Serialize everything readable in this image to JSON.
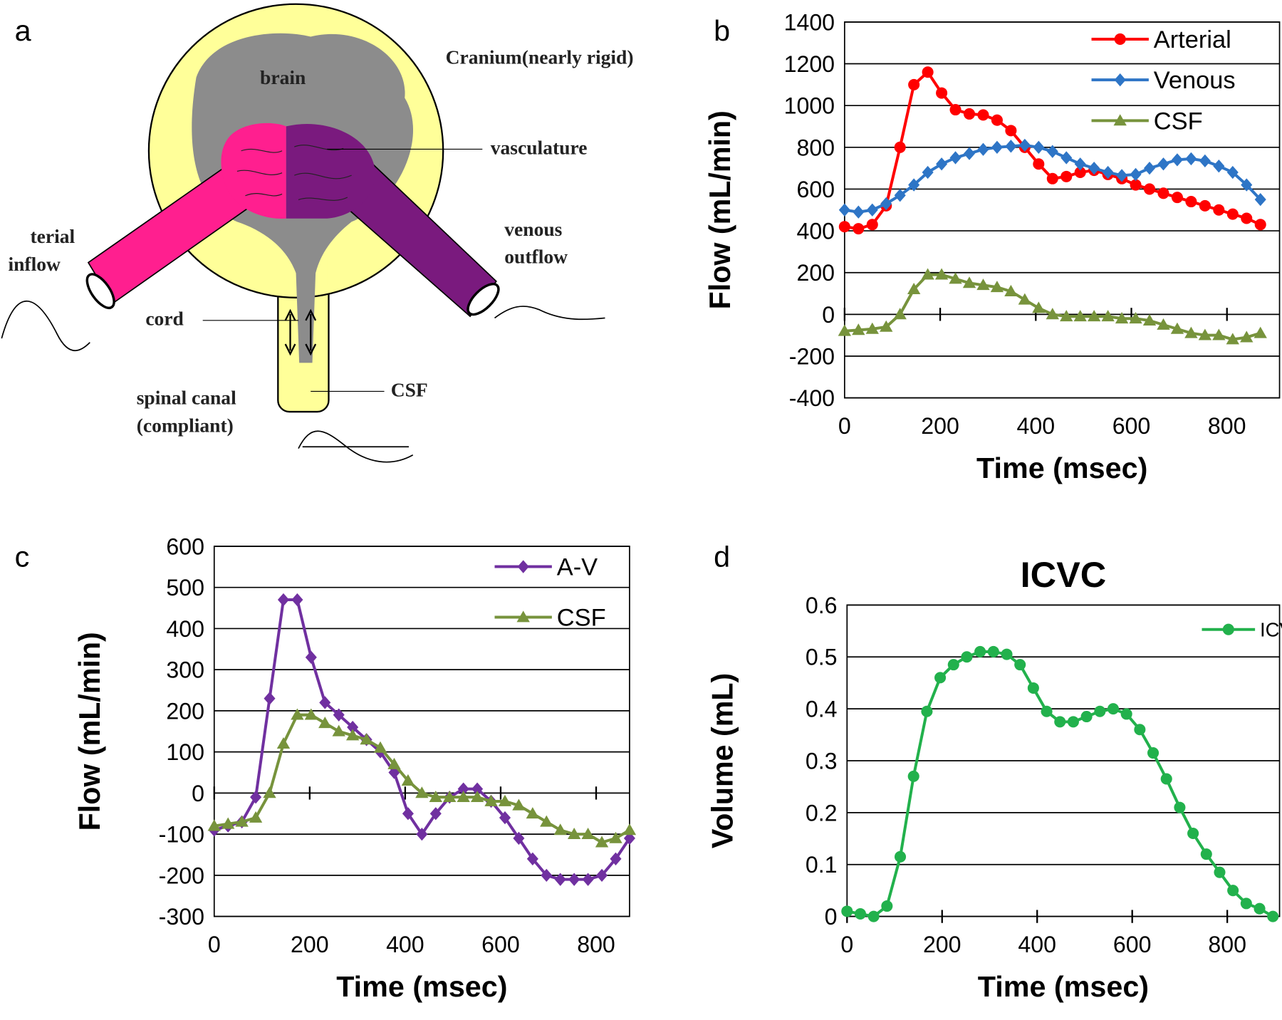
{
  "diagram": {
    "panel": "a",
    "labels": {
      "cranium": "Cranium(nearly rigid)",
      "brain": "brain",
      "vasculature": "vasculature",
      "arterial": "terial",
      "inflow": "inflow",
      "venous": "venous",
      "outflow": "outflow",
      "cord": "cord",
      "csf": "CSF",
      "spinal_canal": "spinal canal",
      "compliant": "(compliant)"
    }
  },
  "chart_data": [
    {
      "type": "line",
      "panel": "b",
      "xlabel": "Time (msec)",
      "ylabel": "Flow (mL/min)",
      "x": [
        0,
        29,
        58,
        87,
        116,
        145,
        174,
        203,
        232,
        261,
        290,
        319,
        348,
        377,
        406,
        435,
        464,
        493,
        522,
        551,
        580,
        609,
        638,
        667,
        696,
        725,
        754,
        783,
        812,
        841,
        870
      ],
      "xlim": [
        0,
        910
      ],
      "xticks": [
        0,
        200,
        400,
        600,
        800
      ],
      "ylim": [
        -400,
        1400
      ],
      "yticks": [
        -400,
        -200,
        0,
        200,
        400,
        600,
        800,
        1000,
        1200,
        1400
      ],
      "grid": true,
      "legend": "upper right",
      "series": [
        {
          "name": "Arterial",
          "color": "#ff0000",
          "marker": "circle",
          "values": [
            420,
            410,
            430,
            520,
            800,
            1100,
            1160,
            1060,
            980,
            960,
            955,
            930,
            880,
            800,
            720,
            650,
            660,
            680,
            690,
            670,
            650,
            620,
            600,
            580,
            560,
            540,
            520,
            500,
            480,
            460,
            430
          ]
        },
        {
          "name": "Venous",
          "color": "#2e75c6",
          "marker": "diamond",
          "values": [
            500,
            490,
            500,
            530,
            570,
            620,
            680,
            720,
            750,
            770,
            790,
            800,
            805,
            810,
            800,
            780,
            750,
            720,
            700,
            680,
            665,
            670,
            700,
            720,
            740,
            745,
            735,
            710,
            680,
            620,
            550
          ]
        },
        {
          "name": "CSF",
          "color": "#77933c",
          "marker": "triangle",
          "values": [
            -80,
            -75,
            -70,
            -60,
            0,
            120,
            190,
            190,
            170,
            150,
            140,
            130,
            110,
            70,
            30,
            0,
            -10,
            -10,
            -10,
            -10,
            -20,
            -20,
            -30,
            -50,
            -70,
            -90,
            -100,
            -100,
            -120,
            -110,
            -90
          ]
        }
      ]
    },
    {
      "type": "line",
      "panel": "c",
      "xlabel": "Time (msec)",
      "ylabel": "Flow (mL/min)",
      "x": [
        0,
        29,
        58,
        87,
        116,
        145,
        174,
        203,
        232,
        261,
        290,
        319,
        348,
        377,
        406,
        435,
        464,
        493,
        522,
        551,
        580,
        609,
        638,
        667,
        696,
        725,
        754,
        783,
        812,
        841,
        870
      ],
      "xlim": [
        0,
        870
      ],
      "xticks": [
        0,
        200,
        400,
        600,
        800
      ],
      "ylim": [
        -300,
        600
      ],
      "yticks": [
        -300,
        -200,
        -100,
        0,
        100,
        200,
        300,
        400,
        500,
        600
      ],
      "grid": true,
      "legend": "upper right",
      "series": [
        {
          "name": "A-V",
          "color": "#7030a0",
          "marker": "diamond",
          "values": [
            -90,
            -80,
            -70,
            -10,
            230,
            470,
            470,
            330,
            220,
            190,
            160,
            130,
            100,
            50,
            -50,
            -100,
            -50,
            -10,
            10,
            10,
            -20,
            -60,
            -110,
            -160,
            -200,
            -210,
            -210,
            -210,
            -200,
            -160,
            -110
          ]
        },
        {
          "name": "CSF",
          "color": "#77933c",
          "marker": "triangle",
          "values": [
            -80,
            -75,
            -70,
            -60,
            0,
            120,
            190,
            190,
            170,
            150,
            140,
            130,
            110,
            70,
            30,
            0,
            -10,
            -10,
            -10,
            -10,
            -20,
            -20,
            -30,
            -50,
            -70,
            -90,
            -100,
            -100,
            -120,
            -110,
            -90
          ]
        }
      ]
    },
    {
      "type": "line",
      "panel": "d",
      "title": "ICVC",
      "xlabel": "Time (msec)",
      "ylabel": "Volume (mL)",
      "x": [
        0,
        28,
        56,
        84,
        112,
        140,
        168,
        196,
        224,
        252,
        280,
        308,
        336,
        364,
        392,
        420,
        448,
        476,
        504,
        532,
        560,
        588,
        616,
        644,
        672,
        700,
        728,
        756,
        784,
        812,
        840,
        868,
        896
      ],
      "xlim": [
        0,
        910
      ],
      "xticks": [
        0,
        200,
        400,
        600,
        800
      ],
      "ylim": [
        0,
        0.6
      ],
      "yticks": [
        0,
        0.1,
        0.2,
        0.3,
        0.4,
        0.5,
        0.6
      ],
      "grid": true,
      "legend": "upper right",
      "series": [
        {
          "name": "ICVC",
          "color": "#22b14c",
          "marker": "circle",
          "values": [
            0.01,
            0.005,
            0,
            0.02,
            0.115,
            0.27,
            0.395,
            0.46,
            0.485,
            0.5,
            0.51,
            0.51,
            0.505,
            0.485,
            0.44,
            0.395,
            0.375,
            0.375,
            0.385,
            0.395,
            0.4,
            0.39,
            0.36,
            0.315,
            0.265,
            0.21,
            0.16,
            0.12,
            0.085,
            0.05,
            0.025,
            0.015,
            0
          ]
        }
      ]
    }
  ]
}
